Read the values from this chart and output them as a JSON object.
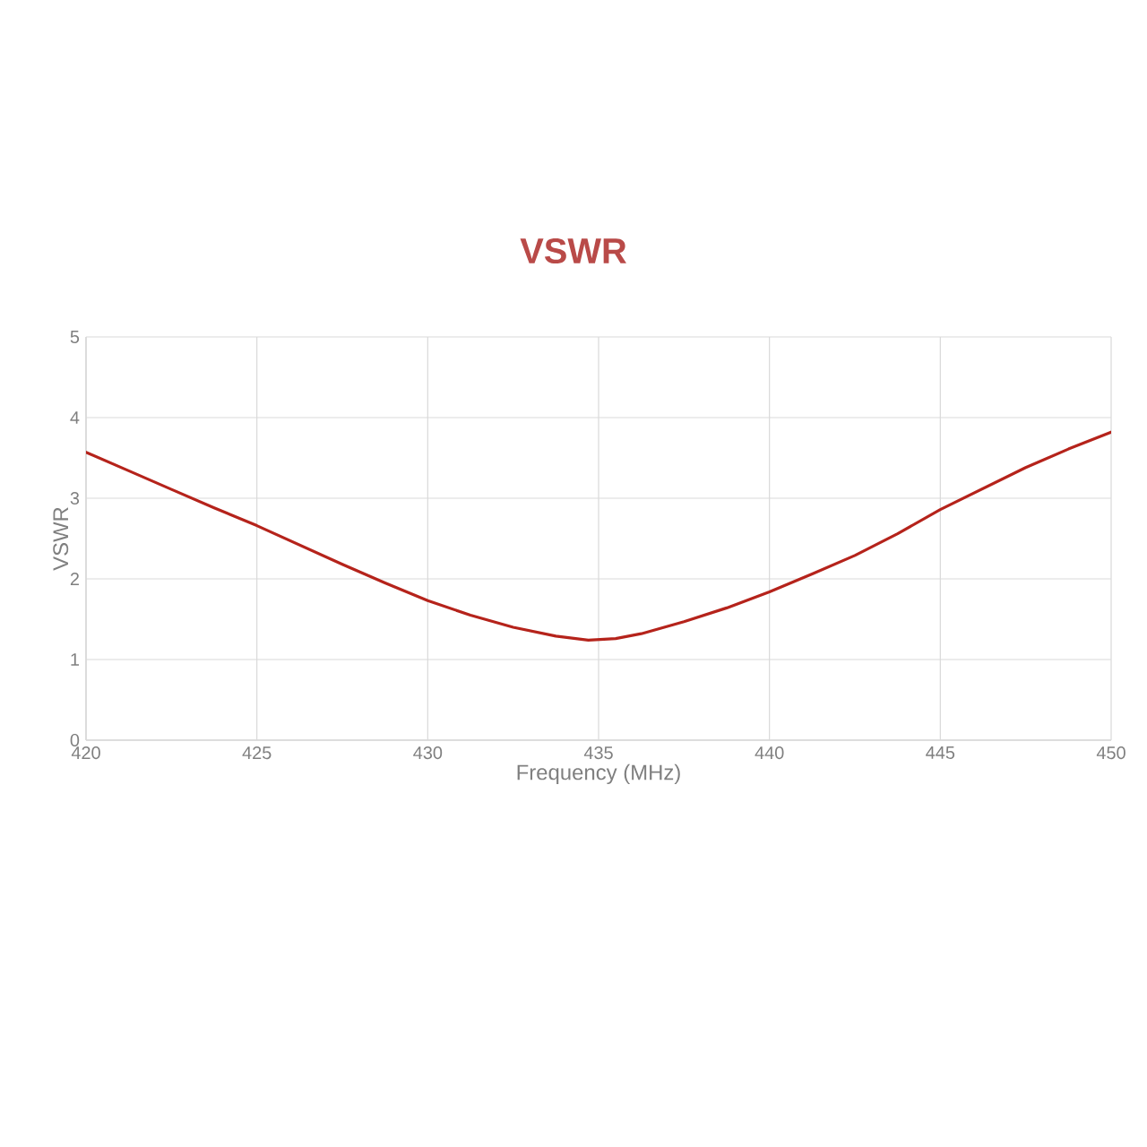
{
  "chart_data": {
    "type": "line",
    "title": "VSWR",
    "xlabel": "Frequency (MHz)",
    "ylabel": "VSWR",
    "x": [
      420,
      421.25,
      422.5,
      423.75,
      425,
      426.25,
      427.5,
      428.75,
      430,
      431.25,
      432.5,
      433.75,
      434.7,
      435.5,
      436.25,
      437.5,
      438.75,
      440,
      441.25,
      442.5,
      443.75,
      445,
      446.25,
      447.5,
      448.75,
      450
    ],
    "series": [
      {
        "color": "#b5231b",
        "values": [
          3.57,
          3.34,
          3.11,
          2.88,
          2.66,
          2.42,
          2.18,
          1.95,
          1.73,
          1.55,
          1.4,
          1.29,
          1.24,
          1.26,
          1.32,
          1.47,
          1.64,
          1.84,
          2.06,
          2.29,
          2.56,
          2.86,
          3.12,
          3.38,
          3.61,
          3.82
        ]
      }
    ],
    "xlim": [
      420,
      450
    ],
    "ylim": [
      0,
      5
    ],
    "xticks": [
      420,
      425,
      430,
      435,
      440,
      445,
      450
    ],
    "yticks": [
      0,
      1,
      2,
      3,
      4,
      5
    ],
    "grid": true,
    "legend": false,
    "marker": "none",
    "line_style": "solid"
  }
}
